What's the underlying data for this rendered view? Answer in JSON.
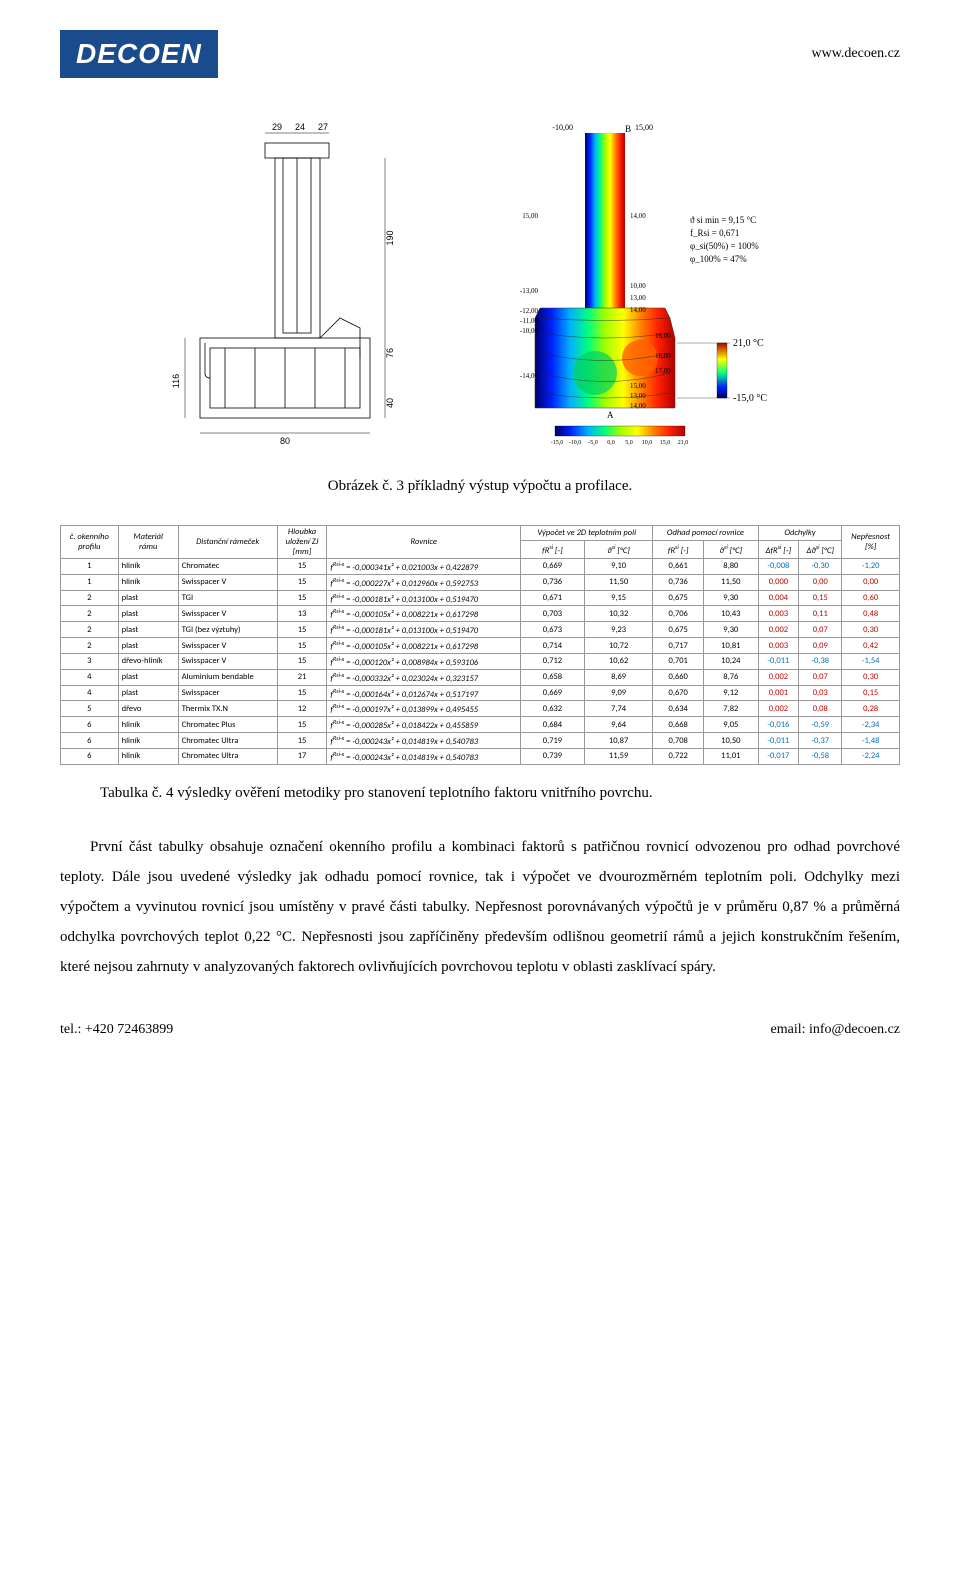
{
  "header": {
    "logo_text": "DECOEN",
    "url": "www.decoen.cz"
  },
  "figures": {
    "left": {
      "dims": {
        "top": [
          "29",
          "24",
          "27"
        ],
        "left": [
          "116"
        ],
        "right_inner": [
          "190",
          "76",
          "40"
        ],
        "bottom": [
          "80"
        ]
      }
    },
    "right": {
      "top_scale": [
        "-10,00",
        "15,00"
      ],
      "annotations": {
        "theta_min": "ϑ si min{A-B} = 9,15 °C",
        "f_rsi": "f{Rsi} = 0,671",
        "phi50": "φ{si(50%)} = 100%",
        "phi100": "φ{100%} = 47%"
      },
      "side_labels": {
        "top": "21,0 °C",
        "bot": "-15,0 °C"
      },
      "left_ticks": [
        "15,00",
        "-13,00",
        "-12,00",
        "-11,00",
        "-10,00",
        "-14,00"
      ],
      "right_vals": [
        "14,00",
        "10,00",
        "13,00",
        "14,00",
        "16,00",
        "16,00",
        "17,00",
        "15,00",
        "13,00",
        "14,00"
      ],
      "markers": {
        "a": "A",
        "b": "B"
      },
      "bottom_scale": [
        "-15,0",
        "-10,0",
        "-5,0",
        "0,0",
        "5,0",
        "10,0",
        "15,0",
        "21,0"
      ]
    },
    "caption": "Obrázek č. 3 příkladný výstup výpočtu a profilace."
  },
  "table": {
    "header": {
      "c1a": "č. okenního",
      "c1b": "profilu",
      "c2a": "Materiál",
      "c2b": "rámu",
      "c3": "Distanční rámeček",
      "c4a": "Hloubka",
      "c4b": "uložení ZJ",
      "c4c": "[mm]",
      "c5": "Rovnice",
      "g1": "Výpočet ve 2D teplotním poli",
      "g2": "Odhad pomocí rovnice",
      "g3": "Odchylky",
      "c10a": "Nepřesnost",
      "c10b": "[%]",
      "sub_fr": "fR{si} [-]",
      "sub_th": "ϑ{si} [°C]",
      "sub_dfr": "ΔfR{si} [-]",
      "sub_dth": "Δϑ{si} [°C]"
    },
    "rows": [
      {
        "p": "1",
        "m": "hliník",
        "d": "Chromatec",
        "h": "15",
        "eq": "f{Rsi-x} = -0,000341x² + 0,021003x + 0,422879",
        "v1": "0,669",
        "v2": "9,10",
        "v3": "0,661",
        "v4": "8,80",
        "d1": "-0,008",
        "d2": "-0,30",
        "n": "-1,20",
        "c": "blue"
      },
      {
        "p": "1",
        "m": "hliník",
        "d": "Swisspacer V",
        "h": "15",
        "eq": "f{Rsi-x} = -0,000227x² + 0,012960x + 0,592753",
        "v1": "0,736",
        "v2": "11,50",
        "v3": "0,736",
        "v4": "11,50",
        "d1": "0,000",
        "d2": "0,00",
        "n": "0,00",
        "c": "red"
      },
      {
        "p": "2",
        "m": "plast",
        "d": "TGI",
        "h": "15",
        "eq": "f{Rsi-x} = -0,000181x² + 0,013100x + 0,519470",
        "v1": "0,671",
        "v2": "9,15",
        "v3": "0,675",
        "v4": "9,30",
        "d1": "0,004",
        "d2": "0,15",
        "n": "0,60",
        "c": "red"
      },
      {
        "p": "2",
        "m": "plast",
        "d": "Swisspacer V",
        "h": "13",
        "eq": "f{Rsi-x} = -0,000105x² + 0,008221x + 0,617298",
        "v1": "0,703",
        "v2": "10,32",
        "v3": "0,706",
        "v4": "10,43",
        "d1": "0,003",
        "d2": "0,11",
        "n": "0,48",
        "c": "red"
      },
      {
        "p": "2",
        "m": "plast",
        "d": "TGI (bez výztuhy)",
        "h": "15",
        "eq": "f{Rsi-x} = -0,000181x² + 0,013100x + 0,519470",
        "v1": "0,673",
        "v2": "9,23",
        "v3": "0,675",
        "v4": "9,30",
        "d1": "0,002",
        "d2": "0,07",
        "n": "0,30",
        "c": "red"
      },
      {
        "p": "2",
        "m": "plast",
        "d": "Swisspacer V",
        "h": "15",
        "eq": "f{Rsi-x} = -0,000105x² + 0,008221x + 0,617298",
        "v1": "0,714",
        "v2": "10,72",
        "v3": "0,717",
        "v4": "10,81",
        "d1": "0,003",
        "d2": "0,09",
        "n": "0,42",
        "c": "red"
      },
      {
        "p": "3",
        "m": "dřevo-hliník",
        "d": "Swisspacer V",
        "h": "15",
        "eq": "f{Rsi-x} = -0,000120x² + 0,008984x + 0,593106",
        "v1": "0,712",
        "v2": "10,62",
        "v3": "0,701",
        "v4": "10,24",
        "d1": "-0,011",
        "d2": "-0,38",
        "n": "-1,54",
        "c": "blue"
      },
      {
        "p": "4",
        "m": "plast",
        "d": "Aluminium bendable",
        "h": "21",
        "eq": "f{Rsi-x} = -0,000332x² + 0,023024x + 0,323157",
        "v1": "0,658",
        "v2": "8,69",
        "v3": "0,660",
        "v4": "8,76",
        "d1": "0,002",
        "d2": "0,07",
        "n": "0,30",
        "c": "red"
      },
      {
        "p": "4",
        "m": "plast",
        "d": "Swisspacer",
        "h": "15",
        "eq": "f{Rsi-x} = -0,000164x² + 0,012674x + 0,517197",
        "v1": "0,669",
        "v2": "9,09",
        "v3": "0,670",
        "v4": "9,12",
        "d1": "0,001",
        "d2": "0,03",
        "n": "0,15",
        "c": "red"
      },
      {
        "p": "5",
        "m": "dřevo",
        "d": "Thermix TX.N",
        "h": "12",
        "eq": "f{Rsi-x} = -0,000197x² + 0,013899x + 0,495455",
        "v1": "0,632",
        "v2": "7,74",
        "v3": "0,634",
        "v4": "7,82",
        "d1": "0,002",
        "d2": "0,08",
        "n": "0,28",
        "c": "red"
      },
      {
        "p": "6",
        "m": "hliník",
        "d": "Chromatec Plus",
        "h": "15",
        "eq": "f{Rsi-x} = -0,000285x² + 0,018422x + 0,455859",
        "v1": "0,684",
        "v2": "9,64",
        "v3": "0,668",
        "v4": "9,05",
        "d1": "-0,016",
        "d2": "-0,59",
        "n": "-2,34",
        "c": "blue"
      },
      {
        "p": "6",
        "m": "hliník",
        "d": "Chromatec Ultra",
        "h": "15",
        "eq": "f{Rsi-x} = -0,000243x² + 0,014819x + 0,540783",
        "v1": "0,719",
        "v2": "10,87",
        "v3": "0,708",
        "v4": "10,50",
        "d1": "-0,011",
        "d2": "-0,37",
        "n": "-1,48",
        "c": "blue"
      },
      {
        "p": "6",
        "m": "hliník",
        "d": "Chromatec Ultra",
        "h": "17",
        "eq": "f{Rsi-x} = -0,000243x² + 0,014819x + 0,540783",
        "v1": "0,739",
        "v2": "11,59",
        "v3": "0,722",
        "v4": "11,01",
        "d1": "-0,017",
        "d2": "-0,58",
        "n": "-2,24",
        "c": "blue"
      }
    ],
    "caption": "Tabulka č. 4 výsledky ověření metodiky pro stanovení teplotního faktoru vnitřního povrchu."
  },
  "body": {
    "p1": "První část tabulky obsahuje označení okenního profilu a kombinaci faktorů s patřičnou rovnicí odvozenou pro odhad povrchové teploty. Dále jsou uvedené výsledky jak odhadu pomocí rovnice, tak i výpočet ve dvourozměrném teplotním poli. Odchylky mezi výpočtem a vyvinutou rovnicí jsou umístěny v pravé části tabulky. Nepřesnost porovnávaných výpočtů je v průměru 0,87 % a průměrná odchylka povrchových teplot 0,22 °C. Nepřesnosti jsou zapříčiněny především odlišnou geometrií rámů a jejich konstrukčním řešením, které nejsou zahrnuty v analyzovaných faktorech ovlivňujících povrchovou teplotu v oblasti zasklívací spáry."
  },
  "footer": {
    "tel": "tel.: +420 72463899",
    "email": "email: info@decoen.cz"
  },
  "colors": {
    "logo_bg": "#1a4b8c",
    "red": "#c00000",
    "blue": "#0070c0",
    "thermal_stops": [
      "#00006a",
      "#0020ff",
      "#00b0ff",
      "#00ff80",
      "#a0ff00",
      "#ffff00",
      "#ff8000",
      "#ff2000",
      "#b00000"
    ]
  }
}
